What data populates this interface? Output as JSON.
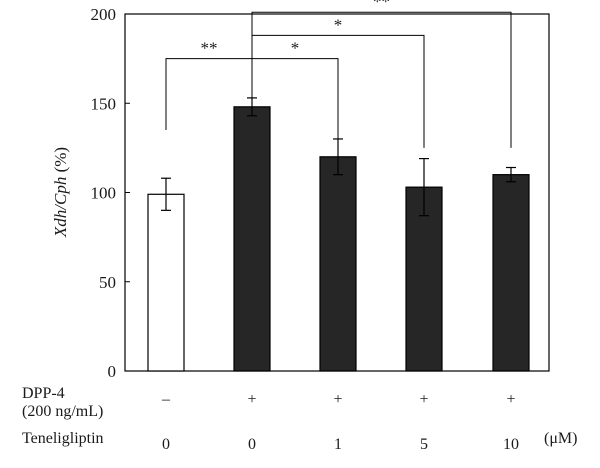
{
  "chart_data": {
    "type": "bar",
    "ylabel": {
      "main_italic": "Xdh/Cph",
      "suffix": " (%)"
    },
    "ylim": [
      0,
      200
    ],
    "yticks": [
      "0",
      "50",
      "100",
      "150",
      "200"
    ],
    "ytick_values": [
      0,
      50,
      100,
      150,
      200
    ],
    "bars": [
      {
        "value": 99,
        "error": 9,
        "fill": "#ffffff"
      },
      {
        "value": 148,
        "error": 5,
        "fill": "#262626"
      },
      {
        "value": 120,
        "error": 10,
        "fill": "#262626"
      },
      {
        "value": 103,
        "error": 16,
        "fill": "#262626"
      },
      {
        "value": 110,
        "error": 4,
        "fill": "#262626"
      }
    ],
    "treatment_rows": [
      {
        "label_lines": [
          "DPP-4",
          "(200 ng/mL)"
        ],
        "values": [
          "–",
          "+",
          "+",
          "+",
          "+"
        ]
      },
      {
        "label_lines": [
          "Teneligliptin"
        ],
        "values": [
          "0",
          "0",
          "1",
          "5",
          "10"
        ]
      }
    ],
    "unit_label": "(μM)",
    "significance": [
      {
        "from": 0,
        "to": 1,
        "label": "**",
        "level": 175,
        "ends": [
          135,
          148
        ]
      },
      {
        "from": 1,
        "to": 2,
        "label": "*",
        "level": 175,
        "ends": [
          148,
          125
        ]
      },
      {
        "from": 1,
        "to": 3,
        "label": "*",
        "level": 188,
        "ends": [
          148,
          125
        ]
      },
      {
        "from": 1,
        "to": 4,
        "label": "**",
        "level": 201,
        "ends": [
          148,
          125
        ]
      }
    ],
    "grid": false
  },
  "colors": {
    "axis": "#000000",
    "dark_bar": "#262626",
    "light_bar": "#ffffff"
  }
}
